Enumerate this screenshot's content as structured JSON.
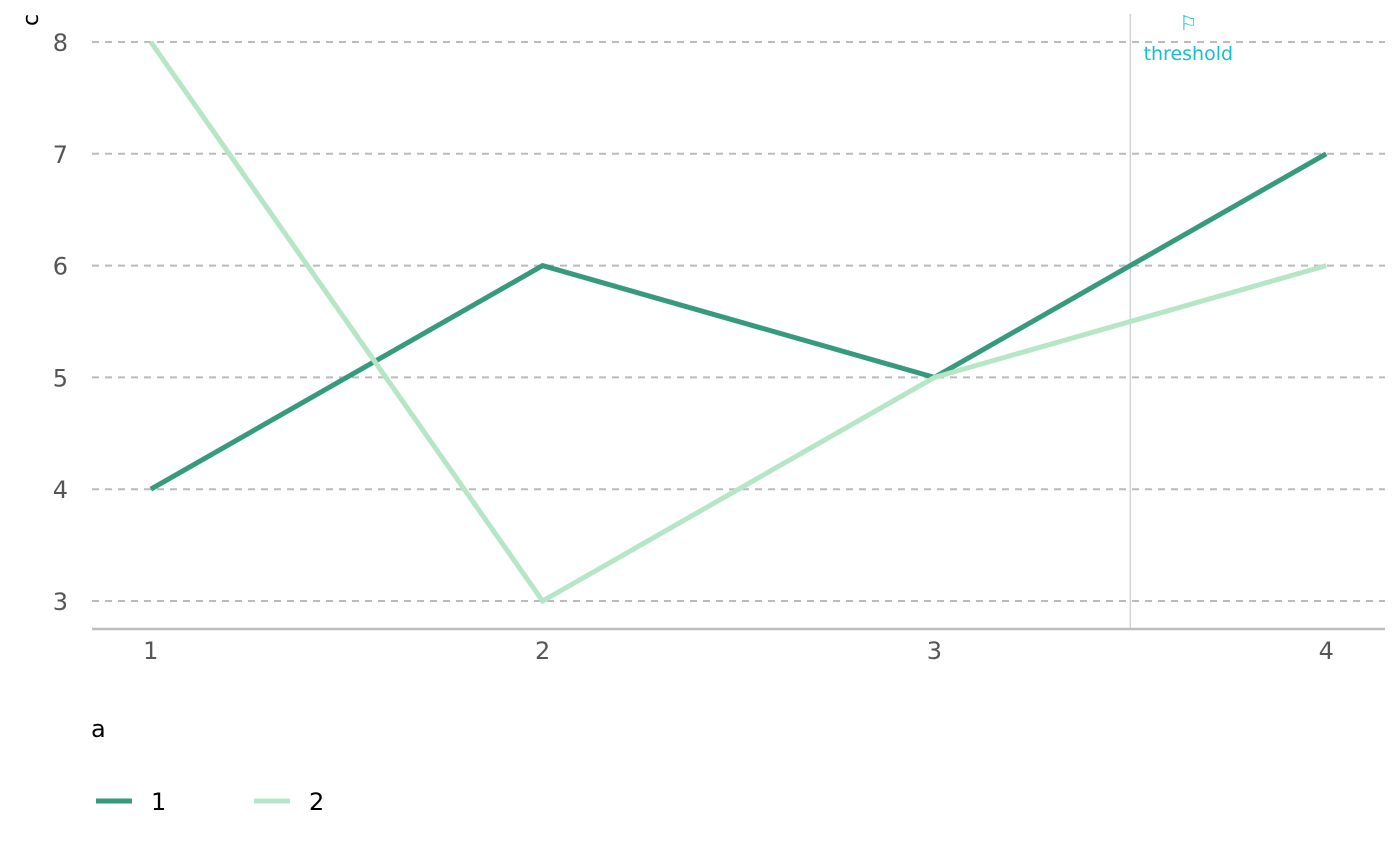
{
  "chart_data": {
    "type": "line",
    "x": [
      1,
      2,
      3,
      4
    ],
    "series": [
      {
        "name": "1",
        "values": [
          4,
          6,
          5,
          7
        ],
        "color": "#359b7c"
      },
      {
        "name": "2",
        "values": [
          8,
          3,
          5,
          6
        ],
        "color": "#b5e6c5"
      }
    ],
    "xticks": [
      "1",
      "2",
      "3",
      "4"
    ],
    "yticks": [
      "3",
      "4",
      "5",
      "6",
      "7",
      "8"
    ],
    "xlim": [
      0.85,
      4.15
    ],
    "ylim": [
      2.75,
      8.25
    ],
    "ylabel": "c",
    "legend": {
      "title": "a",
      "placement": "bottom-left"
    },
    "grid": "horizontal-dashed",
    "annotation": {
      "x": 3.5,
      "label": "threshold",
      "icon": "⚐",
      "icon_name": "flag-icon",
      "color": "#17becf",
      "line_color": "#d3d3d3"
    },
    "colors": {
      "grid": "#bbbbbb",
      "axis": "#bdbdbd",
      "tick_text": "#555555"
    }
  }
}
